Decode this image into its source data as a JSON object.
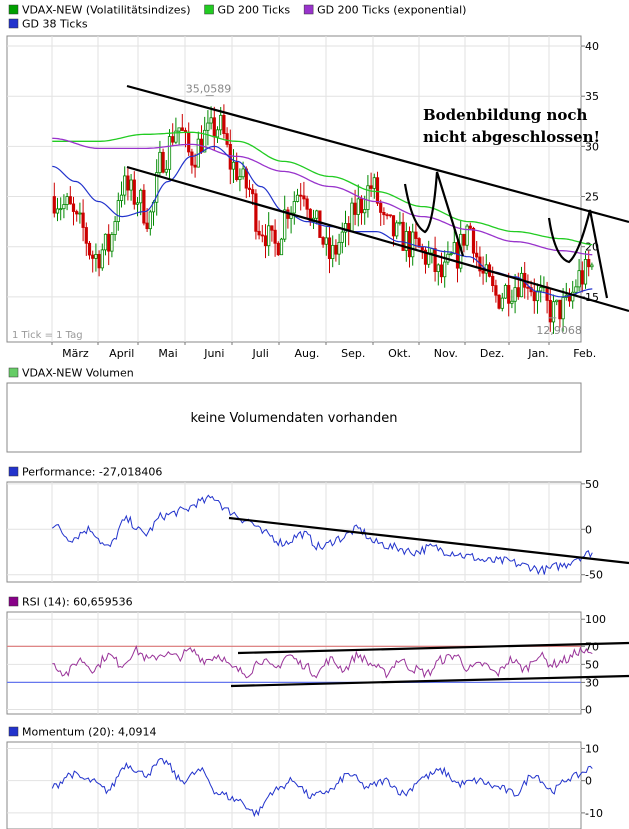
{
  "chart_data": [
    {
      "type": "candlestick",
      "legend": [
        {
          "label": "VDAX-NEW (Volatilitätsindizes)",
          "color": "#00a000"
        },
        {
          "label": "GD 200 Ticks",
          "color": "#22cc22"
        },
        {
          "label": "GD 200 Ticks (exponential)",
          "color": "#9933cc"
        },
        {
          "label": "GD 38 Ticks",
          "color": "#2233cc"
        }
      ],
      "y_ticks": [
        "15",
        "20",
        "25",
        "30",
        "35",
        "40"
      ],
      "ylim": [
        10.5,
        41
      ],
      "x_ticks": [
        "März",
        "April",
        "Mai",
        "Juni",
        "Juli",
        "Aug.",
        "Sep.",
        "Okt.",
        "Nov.",
        "Dez.",
        "Jan.",
        "Feb."
      ],
      "x_month_start": 2,
      "x_month_end": 13.7,
      "tick_note": "1 Tick = 1 Tag",
      "high_label": "35,0589",
      "high_value": 35.0589,
      "high_month": 5.4,
      "low_label": "12,9068",
      "low_value": 12.9068,
      "low_month": 12.8,
      "annotation": "Bodenbildung noch nicht abgeschlossen!",
      "price_anchors": [
        [
          2.0,
          25
        ],
        [
          2.3,
          24
        ],
        [
          2.6,
          22
        ],
        [
          2.9,
          19
        ],
        [
          3.2,
          20
        ],
        [
          3.5,
          26
        ],
        [
          3.8,
          25
        ],
        [
          4.1,
          23
        ],
        [
          4.4,
          29
        ],
        [
          4.7,
          32
        ],
        [
          5.0,
          29
        ],
        [
          5.3,
          31
        ],
        [
          5.6,
          32
        ],
        [
          5.9,
          28
        ],
        [
          6.2,
          26
        ],
        [
          6.5,
          22
        ],
        [
          6.8,
          20
        ],
        [
          7.1,
          24
        ],
        [
          7.4,
          26
        ],
        [
          7.7,
          22
        ],
        [
          8.0,
          19
        ],
        [
          8.3,
          21
        ],
        [
          8.6,
          24
        ],
        [
          8.9,
          26
        ],
        [
          9.2,
          22
        ],
        [
          9.5,
          21
        ],
        [
          9.8,
          20
        ],
        [
          10.1,
          19
        ],
        [
          10.4,
          17
        ],
        [
          10.7,
          19
        ],
        [
          11.0,
          22
        ],
        [
          11.3,
          17
        ],
        [
          11.6,
          15
        ],
        [
          11.9,
          16
        ],
        [
          12.2,
          17
        ],
        [
          12.5,
          15
        ],
        [
          12.8,
          13.5
        ],
        [
          13.1,
          14
        ],
        [
          13.4,
          17
        ],
        [
          13.7,
          18
        ]
      ],
      "sma200_anchors": [
        [
          2.0,
          30.5
        ],
        [
          3.0,
          30.5
        ],
        [
          4.0,
          31.2
        ],
        [
          5.0,
          31.4
        ],
        [
          6.0,
          30.5
        ],
        [
          7.0,
          28.5
        ],
        [
          8.0,
          27.0
        ],
        [
          9.0,
          25.5
        ],
        [
          10.0,
          24.0
        ],
        [
          11.0,
          22.5
        ],
        [
          12.0,
          21.5
        ],
        [
          13.0,
          20.8
        ],
        [
          13.7,
          20.2
        ]
      ],
      "ema200_anchors": [
        [
          2.0,
          30.8
        ],
        [
          3.0,
          29.8
        ],
        [
          4.0,
          29.8
        ],
        [
          5.0,
          30.2
        ],
        [
          6.0,
          29.0
        ],
        [
          7.0,
          27.5
        ],
        [
          8.0,
          26.0
        ],
        [
          9.0,
          24.5
        ],
        [
          10.0,
          23.0
        ],
        [
          11.0,
          21.7
        ],
        [
          12.0,
          20.5
        ],
        [
          13.0,
          19.6
        ],
        [
          13.7,
          19.2
        ]
      ],
      "sma38_anchors": [
        [
          2.0,
          28.0
        ],
        [
          2.5,
          26.5
        ],
        [
          3.0,
          24.5
        ],
        [
          3.5,
          23.0
        ],
        [
          4.0,
          23.5
        ],
        [
          4.5,
          26.5
        ],
        [
          5.0,
          29.0
        ],
        [
          5.5,
          30.0
        ],
        [
          6.0,
          28.5
        ],
        [
          6.5,
          26.0
        ],
        [
          7.0,
          23.5
        ],
        [
          7.5,
          22.5
        ],
        [
          8.0,
          22.0
        ],
        [
          8.5,
          21.5
        ],
        [
          9.0,
          21.5
        ],
        [
          9.5,
          20.5
        ],
        [
          10.0,
          20.0
        ],
        [
          10.5,
          19.5
        ],
        [
          11.0,
          19.0
        ],
        [
          11.5,
          17.5
        ],
        [
          12.0,
          17.0
        ],
        [
          12.5,
          15.5
        ],
        [
          13.0,
          15.0
        ],
        [
          13.7,
          15.8
        ]
      ]
    },
    {
      "type": "bar",
      "legend": [
        {
          "label": "VDAX-NEW Volumen",
          "color": "#66cc66"
        }
      ],
      "message": "keine Volumendaten vorhanden"
    },
    {
      "type": "line",
      "legend": [
        {
          "label": "Performance: -27,018406",
          "color": "#2233cc"
        }
      ],
      "y_ticks": [
        "-50",
        "0",
        "50"
      ],
      "ylim": [
        -58,
        52
      ],
      "series_anchors": [
        [
          2.0,
          5
        ],
        [
          2.4,
          -10
        ],
        [
          2.8,
          0
        ],
        [
          3.2,
          -20
        ],
        [
          3.6,
          10
        ],
        [
          4.0,
          -5
        ],
        [
          4.4,
          15
        ],
        [
          4.8,
          20
        ],
        [
          5.2,
          30
        ],
        [
          5.5,
          35
        ],
        [
          5.8,
          20
        ],
        [
          6.2,
          10
        ],
        [
          6.6,
          -5
        ],
        [
          7.0,
          -15
        ],
        [
          7.4,
          -5
        ],
        [
          7.8,
          -20
        ],
        [
          8.2,
          -10
        ],
        [
          8.6,
          0
        ],
        [
          9.0,
          -15
        ],
        [
          9.4,
          -20
        ],
        [
          9.8,
          -25
        ],
        [
          10.2,
          -20
        ],
        [
          10.6,
          -25
        ],
        [
          11.0,
          -30
        ],
        [
          11.4,
          -35
        ],
        [
          11.8,
          -35
        ],
        [
          12.2,
          -40
        ],
        [
          12.6,
          -45
        ],
        [
          13.0,
          -40
        ],
        [
          13.4,
          -30
        ],
        [
          13.7,
          -25
        ]
      ]
    },
    {
      "type": "line",
      "legend": [
        {
          "label": "RSI (14): 60,659536",
          "color": "#880088"
        }
      ],
      "y_ticks": [
        "0",
        "30",
        "50",
        "70",
        "100"
      ],
      "ylim": [
        -5,
        108
      ],
      "ref_lines": [
        {
          "value": 70,
          "color": "#dd7777"
        },
        {
          "value": 30,
          "color": "#6677ee"
        }
      ],
      "series_anchors": [
        [
          2.0,
          50
        ],
        [
          2.3,
          40
        ],
        [
          2.6,
          55
        ],
        [
          2.9,
          45
        ],
        [
          3.2,
          60
        ],
        [
          3.5,
          50
        ],
        [
          3.8,
          65
        ],
        [
          4.1,
          55
        ],
        [
          4.4,
          62
        ],
        [
          4.7,
          58
        ],
        [
          5.0,
          65
        ],
        [
          5.3,
          55
        ],
        [
          5.6,
          60
        ],
        [
          5.9,
          45
        ],
        [
          6.2,
          40
        ],
        [
          6.5,
          55
        ],
        [
          6.8,
          45
        ],
        [
          7.1,
          60
        ],
        [
          7.4,
          50
        ],
        [
          7.7,
          40
        ],
        [
          8.0,
          55
        ],
        [
          8.3,
          45
        ],
        [
          8.6,
          60
        ],
        [
          8.9,
          50
        ],
        [
          9.2,
          40
        ],
        [
          9.5,
          55
        ],
        [
          9.8,
          45
        ],
        [
          10.1,
          40
        ],
        [
          10.4,
          55
        ],
        [
          10.7,
          60
        ],
        [
          11.0,
          45
        ],
        [
          11.3,
          50
        ],
        [
          11.6,
          40
        ],
        [
          11.9,
          55
        ],
        [
          12.2,
          45
        ],
        [
          12.5,
          60
        ],
        [
          12.8,
          50
        ],
        [
          13.1,
          55
        ],
        [
          13.4,
          65
        ],
        [
          13.7,
          60
        ]
      ]
    },
    {
      "type": "line",
      "legend": [
        {
          "label": "Momentum (20): 4,0914",
          "color": "#2233cc"
        }
      ],
      "y_ticks": [
        "-10",
        "0",
        "10"
      ],
      "ylim": [
        -15,
        12
      ],
      "series_anchors": [
        [
          2.0,
          -2
        ],
        [
          2.4,
          2
        ],
        [
          2.8,
          0
        ],
        [
          3.2,
          -3
        ],
        [
          3.6,
          5
        ],
        [
          4.0,
          2
        ],
        [
          4.4,
          6
        ],
        [
          4.8,
          0
        ],
        [
          5.2,
          3
        ],
        [
          5.6,
          -4
        ],
        [
          6.0,
          -6
        ],
        [
          6.4,
          -10
        ],
        [
          6.8,
          -3
        ],
        [
          7.2,
          0
        ],
        [
          7.6,
          -5
        ],
        [
          8.0,
          -3
        ],
        [
          8.4,
          2
        ],
        [
          8.8,
          -2
        ],
        [
          9.2,
          0
        ],
        [
          9.6,
          -4
        ],
        [
          10.0,
          1
        ],
        [
          10.4,
          3
        ],
        [
          10.8,
          -1
        ],
        [
          11.2,
          0
        ],
        [
          11.6,
          -2
        ],
        [
          12.0,
          -4
        ],
        [
          12.4,
          2
        ],
        [
          12.8,
          -3
        ],
        [
          13.2,
          1
        ],
        [
          13.7,
          4
        ]
      ]
    }
  ]
}
